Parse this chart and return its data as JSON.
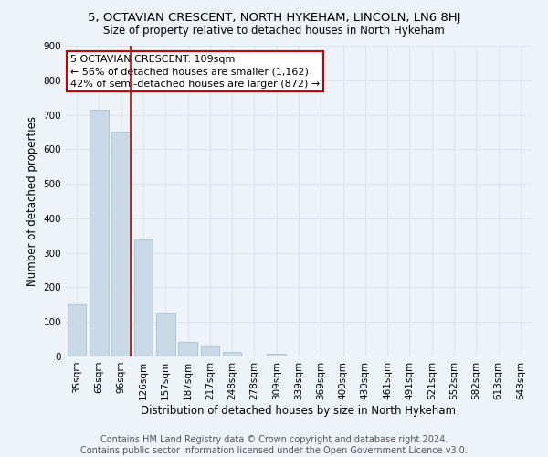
{
  "title": "5, OCTAVIAN CRESCENT, NORTH HYKEHAM, LINCOLN, LN6 8HJ",
  "subtitle": "Size of property relative to detached houses in North Hykeham",
  "xlabel": "Distribution of detached houses by size in North Hykeham",
  "ylabel": "Number of detached properties",
  "categories": [
    "35sqm",
    "65sqm",
    "96sqm",
    "126sqm",
    "157sqm",
    "187sqm",
    "217sqm",
    "248sqm",
    "278sqm",
    "309sqm",
    "339sqm",
    "369sqm",
    "400sqm",
    "430sqm",
    "461sqm",
    "491sqm",
    "521sqm",
    "552sqm",
    "582sqm",
    "613sqm",
    "643sqm"
  ],
  "values": [
    150,
    716,
    650,
    340,
    128,
    42,
    30,
    12,
    0,
    9,
    0,
    0,
    0,
    0,
    0,
    0,
    0,
    0,
    0,
    0,
    0
  ],
  "bar_color": "#c9d9e8",
  "bar_edge_color": "#a8bfcf",
  "grid_color": "#dce4ef",
  "background_color": "#eef2f9",
  "vline_color": "#cc0000",
  "annotation_line1": "5 OCTAVIAN CRESCENT: 109sqm",
  "annotation_line2": "← 56% of detached houses are smaller (1,162)",
  "annotation_line3": "42% of semi-detached houses are larger (872) →",
  "annotation_box_color": "#ffffff",
  "annotation_box_edge": "#cc0000",
  "ylim": [
    0,
    900
  ],
  "yticks": [
    0,
    100,
    200,
    300,
    400,
    500,
    600,
    700,
    800,
    900
  ],
  "footer": "Contains HM Land Registry data © Crown copyright and database right 2024.\nContains public sector information licensed under the Open Government Licence v3.0.",
  "title_fontsize": 9.5,
  "subtitle_fontsize": 8.5,
  "xlabel_fontsize": 8.5,
  "ylabel_fontsize": 8.5,
  "tick_fontsize": 7.5,
  "annotation_fontsize": 8,
  "footer_fontsize": 7
}
